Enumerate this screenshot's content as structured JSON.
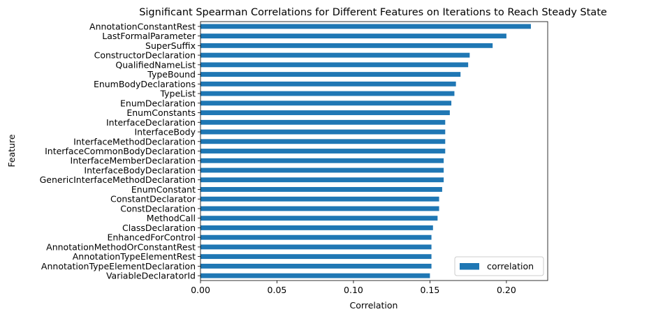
{
  "chart_data": {
    "type": "bar",
    "orientation": "horizontal",
    "title": "Significant Spearman Correlations for Different Features on Iterations to Reach Steady State",
    "xlabel": "Correlation",
    "ylabel": "Feature",
    "xlim": [
      0.0,
      0.227
    ],
    "xticks": [
      "0.00",
      "0.05",
      "0.10",
      "0.15",
      "0.20"
    ],
    "grid": false,
    "legend_position": "lower-right",
    "series": [
      {
        "name": "correlation",
        "color": "#1f77b4",
        "categories": [
          "AnnotationConstantRest",
          "LastFormalParameter",
          "SuperSuffix",
          "ConstructorDeclaration",
          "QualifiedNameList",
          "TypeBound",
          "EnumBodyDeclarations",
          "TypeList",
          "EnumDeclaration",
          "EnumConstants",
          "InterfaceDeclaration",
          "InterfaceBody",
          "InterfaceMethodDeclaration",
          "InterfaceCommonBodyDeclaration",
          "InterfaceMemberDeclaration",
          "InterfaceBodyDeclaration",
          "GenericInterfaceMethodDeclaration",
          "EnumConstant",
          "ConstantDeclarator",
          "ConstDeclaration",
          "MethodCall",
          "ClassDeclaration",
          "EnhancedForControl",
          "AnnotationMethodOrConstantRest",
          "AnnotationTypeElementRest",
          "AnnotationTypeElementDeclaration",
          "VariableDeclaratorId"
        ],
        "values": [
          0.216,
          0.2,
          0.191,
          0.176,
          0.175,
          0.17,
          0.167,
          0.166,
          0.164,
          0.163,
          0.16,
          0.16,
          0.16,
          0.16,
          0.159,
          0.159,
          0.159,
          0.158,
          0.156,
          0.156,
          0.155,
          0.152,
          0.151,
          0.151,
          0.151,
          0.151,
          0.15
        ]
      }
    ]
  }
}
